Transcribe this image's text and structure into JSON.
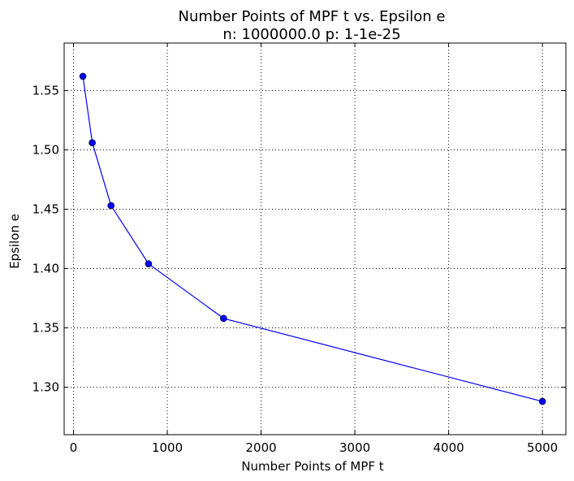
{
  "chart_data": {
    "type": "line",
    "title": "Number Points of MPF t  vs. Epsilon e",
    "subtitle": "n: 1000000.0 p: 1-1e-25",
    "xlabel": "Number Points of MPF t",
    "ylabel": "Epsilon e",
    "xlim": [
      -100,
      5250
    ],
    "ylim": [
      1.26,
      1.59
    ],
    "xticks": [
      0,
      1000,
      2000,
      3000,
      4000,
      5000
    ],
    "xtick_labels": [
      "0",
      "1000",
      "2000",
      "3000",
      "4000",
      "5000"
    ],
    "yticks": [
      1.3,
      1.35,
      1.4,
      1.45,
      1.5,
      1.55
    ],
    "ytick_labels": [
      "1.30",
      "1.35",
      "1.40",
      "1.45",
      "1.50",
      "1.55"
    ],
    "grid": true,
    "series": [
      {
        "name": "epsilon",
        "color": "#0000ff",
        "marker": "circle",
        "x": [
          100,
          200,
          400,
          800,
          1600,
          5000
        ],
        "y": [
          1.562,
          1.506,
          1.453,
          1.404,
          1.358,
          1.288
        ]
      }
    ]
  }
}
